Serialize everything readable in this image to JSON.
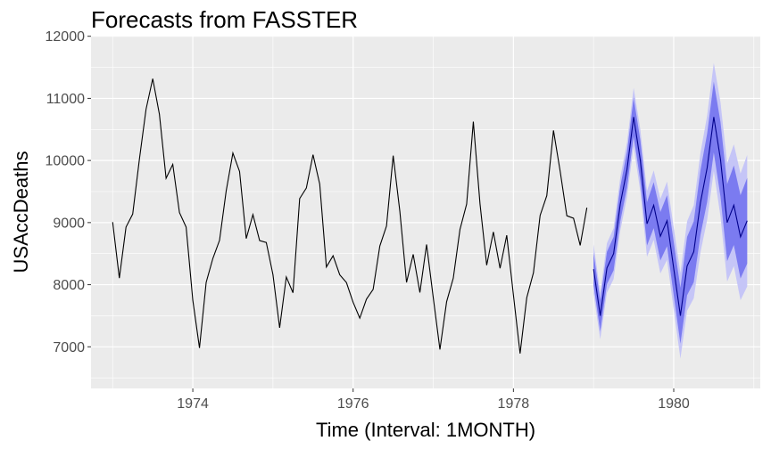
{
  "chart_data": {
    "type": "line",
    "title": "Forecasts from FASSTER",
    "xlabel": "Time (Interval: 1MONTH)",
    "ylabel": "USAccDeaths",
    "xlim": [
      1972.73,
      1981.08
    ],
    "ylim": [
      6330,
      12010
    ],
    "x_ticks": [
      1974,
      1976,
      1978,
      1980
    ],
    "y_ticks": [
      7000,
      8000,
      9000,
      10000,
      11000,
      12000
    ],
    "grid": true,
    "colors": {
      "panel": "#ebebeb",
      "grid": "#ffffff",
      "history_line": "#000000",
      "forecast_line": "#00008b",
      "band_80": "#7b7bf0",
      "band_95": "#c5c5f7"
    },
    "history": {
      "start": 1973.0,
      "step": 0.08333,
      "values": [
        9007,
        8106,
        8928,
        9137,
        10017,
        10826,
        11317,
        10744,
        9713,
        9938,
        9161,
        8927,
        7750,
        6981,
        8038,
        8422,
        8714,
        9512,
        10120,
        9823,
        8743,
        9129,
        8710,
        8680,
        8162,
        7306,
        8124,
        7870,
        9387,
        9556,
        10093,
        9620,
        8285,
        8466,
        8160,
        8034,
        7717,
        7461,
        7767,
        7925,
        8623,
        8945,
        10078,
        9179,
        8037,
        8488,
        7874,
        8647,
        7792,
        6957,
        7726,
        8106,
        8890,
        9299,
        10625,
        9302,
        8314,
        8850,
        8265,
        8796,
        7836,
        6892,
        7791,
        8192,
        9115,
        9434,
        10484,
        9827,
        9110,
        9070,
        8633,
        9240
      ]
    },
    "forecast": {
      "start": 1979.0,
      "step": 0.08333,
      "mean": [
        8250,
        7500,
        8270,
        8500,
        9300,
        9850,
        10700,
        10000,
        8980,
        9280,
        8780,
        9030,
        8260,
        7500,
        8300,
        8530,
        9320,
        9880,
        10700,
        10020,
        9000,
        9280,
        8770,
        9030
      ],
      "lo80": [
        7990,
        7250,
        8010,
        8230,
        9020,
        9560,
        10390,
        9670,
        8630,
        8910,
        8390,
        8620,
        7830,
        7050,
        7830,
        8040,
        8800,
        9330,
        10130,
        9420,
        8380,
        8640,
        8100,
        8340
      ],
      "hi80": [
        8510,
        7750,
        8530,
        8770,
        9580,
        10140,
        11010,
        10330,
        9330,
        9650,
        9170,
        9440,
        8690,
        7950,
        8770,
        9020,
        9840,
        10430,
        11270,
        10620,
        9620,
        9920,
        9440,
        9720
      ],
      "lo95": [
        7850,
        7120,
        7870,
        8090,
        8870,
        9410,
        10230,
        9500,
        8450,
        8720,
        8180,
        8400,
        7600,
        6810,
        7580,
        7780,
        8520,
        9040,
        9830,
        9100,
        8050,
        8300,
        7750,
        7970
      ],
      "hi95": [
        8650,
        7880,
        8670,
        8910,
        9730,
        10290,
        11170,
        10500,
        9510,
        9840,
        9380,
        9660,
        8920,
        8190,
        9020,
        9280,
        10120,
        10720,
        11570,
        10940,
        9950,
        10260,
        9790,
        10090
      ]
    }
  }
}
